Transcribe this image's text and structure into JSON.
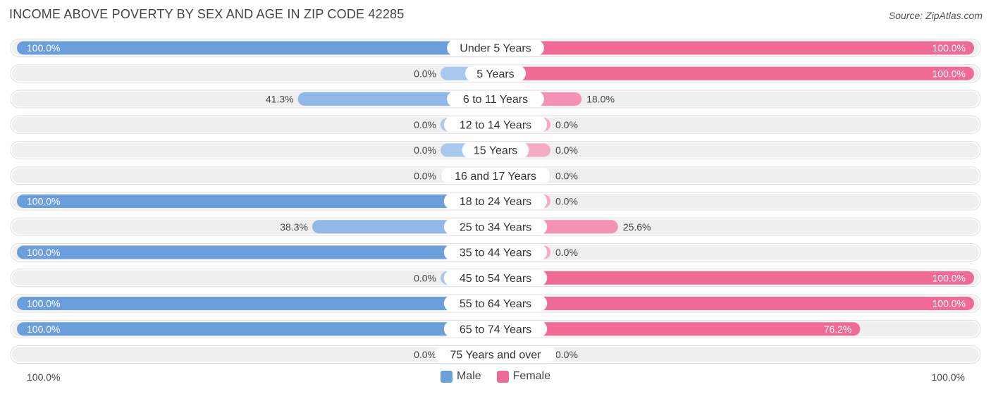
{
  "title": "INCOME ABOVE POVERTY BY SEX AND AGE IN ZIP CODE 42285",
  "source": "Source: ZipAtlas.com",
  "colors": {
    "male_strong": "#6a9fdc",
    "male_light": "#a9c8ee",
    "female_strong": "#f06a96",
    "female_light": "#f6aac4",
    "track": "#efefef"
  },
  "legend": {
    "male": "Male",
    "female": "Female"
  },
  "axis": {
    "left_label": "100.0%",
    "right_label": "100.0%"
  },
  "chart_data": {
    "type": "bar",
    "orientation": "horizontal-diverging",
    "value_unit": "%",
    "xlim": [
      0,
      100
    ],
    "categories": [
      "Under 5 Years",
      "5 Years",
      "6 to 11 Years",
      "12 to 14 Years",
      "15 Years",
      "16 and 17 Years",
      "18 to 24 Years",
      "25 to 34 Years",
      "35 to 44 Years",
      "45 to 54 Years",
      "55 to 64 Years",
      "65 to 74 Years",
      "75 Years and over"
    ],
    "series": [
      {
        "name": "Male",
        "values": [
          100.0,
          0.0,
          41.3,
          0.0,
          0.0,
          0.0,
          100.0,
          38.3,
          100.0,
          0.0,
          100.0,
          100.0,
          0.0
        ],
        "labels": [
          "100.0%",
          "0.0%",
          "41.3%",
          "0.0%",
          "0.0%",
          "0.0%",
          "100.0%",
          "38.3%",
          "100.0%",
          "0.0%",
          "100.0%",
          "100.0%",
          "0.0%"
        ]
      },
      {
        "name": "Female",
        "values": [
          100.0,
          100.0,
          18.0,
          0.0,
          0.0,
          0.0,
          0.0,
          25.6,
          0.0,
          100.0,
          100.0,
          76.2,
          0.0
        ],
        "labels": [
          "100.0%",
          "100.0%",
          "18.0%",
          "0.0%",
          "0.0%",
          "0.0%",
          "0.0%",
          "25.6%",
          "0.0%",
          "100.0%",
          "100.0%",
          "76.2%",
          "0.0%"
        ]
      }
    ],
    "legend_position": "bottom-center",
    "grid": false
  }
}
